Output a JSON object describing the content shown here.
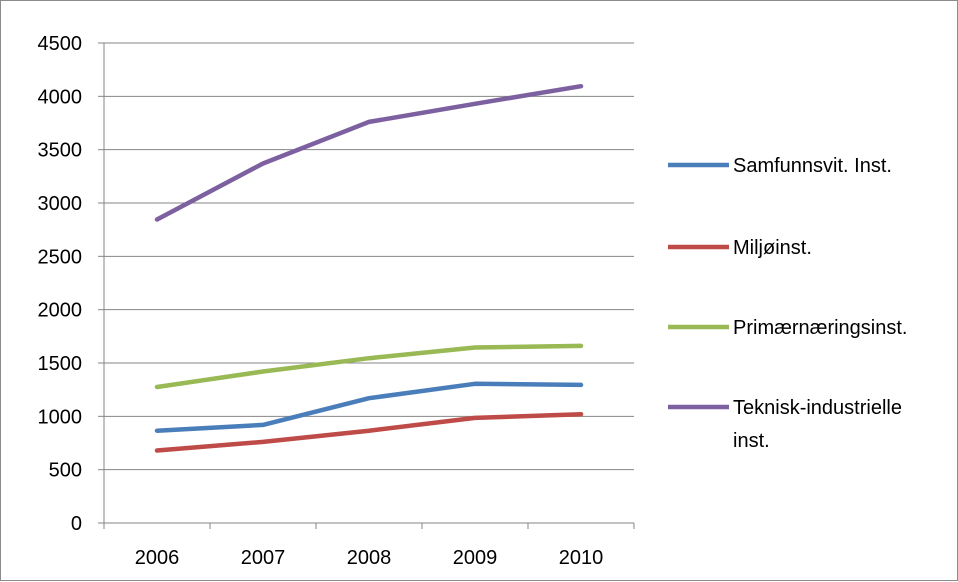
{
  "chart_data": {
    "type": "line",
    "title": "",
    "xlabel": "",
    "ylabel": "",
    "categories": [
      "2006",
      "2007",
      "2008",
      "2009",
      "2010"
    ],
    "ylim": [
      0,
      4500
    ],
    "yticks": [
      0,
      500,
      1000,
      1500,
      2000,
      2500,
      3000,
      3500,
      4000,
      4500
    ],
    "grid": "horizontal",
    "legend_position": "right",
    "series": [
      {
        "name": "Samfunnsvit. Inst.",
        "color": "#4a7ebb",
        "values": [
          865,
          920,
          1170,
          1305,
          1295
        ]
      },
      {
        "name": "Miljøinst.",
        "color": "#be4b48",
        "values": [
          680,
          760,
          865,
          985,
          1020
        ]
      },
      {
        "name": "Primærnæringsinst.",
        "color": "#98b954",
        "values": [
          1275,
          1420,
          1545,
          1645,
          1660
        ]
      },
      {
        "name": "Teknisk-industrielle inst.",
        "color": "#7d60a0",
        "values": [
          2845,
          3370,
          3760,
          3930,
          4095
        ]
      }
    ]
  }
}
